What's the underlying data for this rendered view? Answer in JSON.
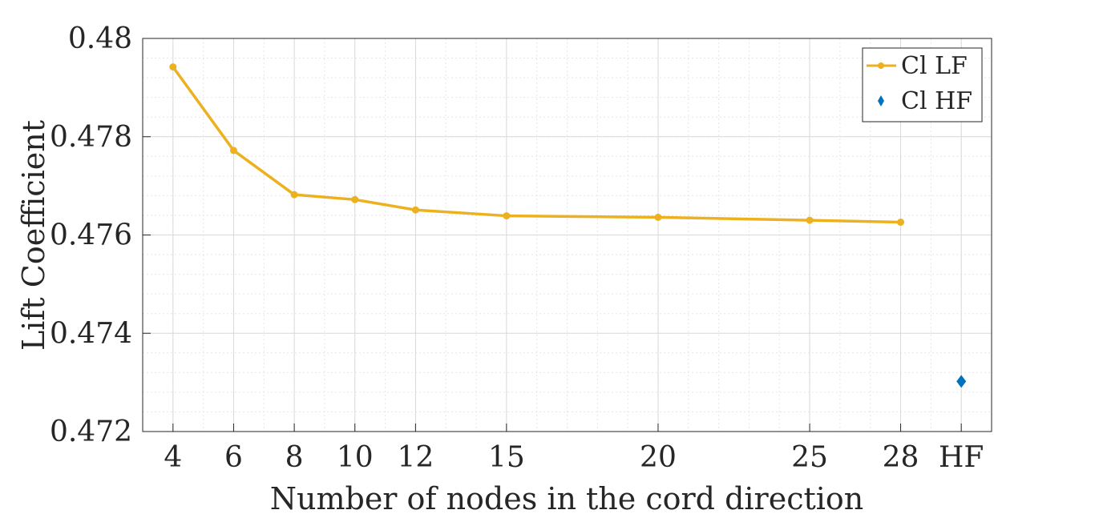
{
  "chart_data": {
    "type": "line",
    "title": "",
    "xlabel": "Number of nodes in the cord direction",
    "ylabel": "Lift Coefficient",
    "x_tick_labels": [
      "4",
      "6",
      "8",
      "10",
      "12",
      "15",
      "20",
      "25",
      "28",
      "HF"
    ],
    "x_tick_values": [
      4,
      6,
      8,
      10,
      12,
      15,
      20,
      25,
      28,
      30
    ],
    "xlim": [
      3,
      31
    ],
    "y_tick_labels": [
      "0.472",
      "0.474",
      "0.476",
      "0.478",
      "0.48"
    ],
    "y_tick_values": [
      0.472,
      0.474,
      0.476,
      0.478,
      0.48
    ],
    "ylim": [
      0.472,
      0.48
    ],
    "grid": true,
    "minor_grid": true,
    "legend_position": "top-right",
    "series": [
      {
        "name": "Cl LF",
        "type": "line",
        "marker": "dot",
        "color": "#EDB120",
        "x": [
          4,
          6,
          8,
          10,
          12,
          15,
          20,
          25,
          28
        ],
        "y": [
          0.47942,
          0.47772,
          0.47682,
          0.47672,
          0.47651,
          0.47639,
          0.47636,
          0.4763,
          0.47626
        ]
      },
      {
        "name": "Cl HF",
        "type": "scatter",
        "marker": "diamond",
        "color": "#0072BD",
        "x": [
          30
        ],
        "y": [
          0.47302
        ]
      }
    ]
  }
}
